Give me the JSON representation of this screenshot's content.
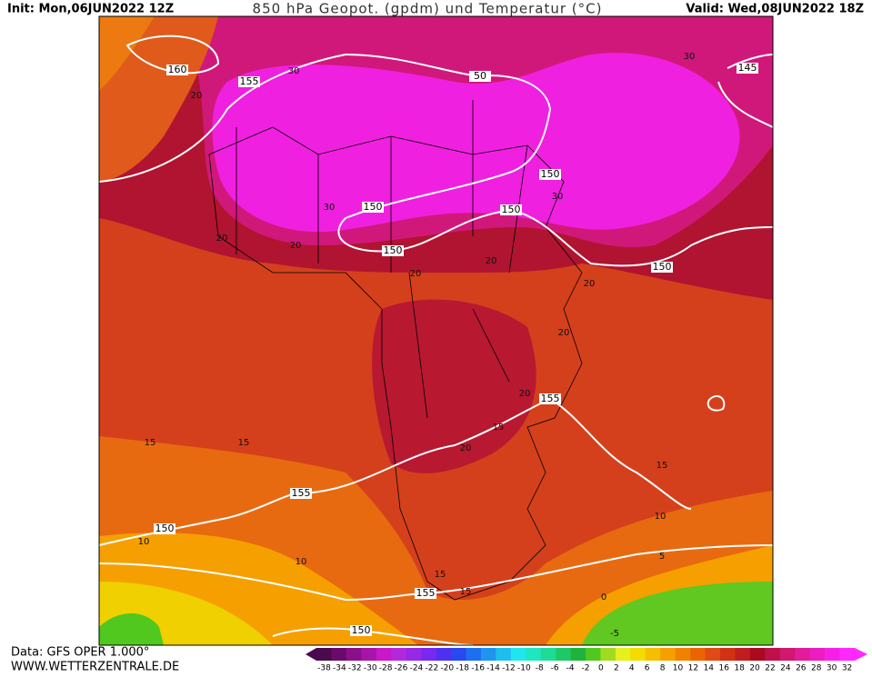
{
  "header": {
    "init": "Init: Mon,06JUN2022 12Z",
    "title": "850 hPa Geopot. (gpdm) und Temperatur (°C)",
    "valid": "Valid: Wed,08JUN2022 18Z"
  },
  "footer": {
    "data": "Data: GFS OPER 1.000°",
    "site": "WWW.WETTERZENTRALE.DE"
  },
  "colorbar": {
    "labels": [
      -38,
      -34,
      -32,
      -30,
      -28,
      -26,
      -24,
      -22,
      -20,
      -18,
      -16,
      -14,
      -12,
      -10,
      -8,
      -6,
      -4,
      -2,
      0,
      2,
      4,
      6,
      8,
      10,
      12,
      14,
      16,
      18,
      20,
      22,
      24,
      26,
      28,
      30,
      32
    ],
    "colors": [
      "#4b0a4b",
      "#6a0a6a",
      "#8a108a",
      "#a814a8",
      "#c818c8",
      "#b428dc",
      "#9628e6",
      "#7828f0",
      "#5030f0",
      "#2848f0",
      "#1e6ef0",
      "#1e96f0",
      "#1ebef0",
      "#1ee6f0",
      "#1ee6be",
      "#1edc96",
      "#1ec864",
      "#1eb43c",
      "#50c81e",
      "#a0dc1e",
      "#e6f01e",
      "#f5dc00",
      "#f5be00",
      "#f5a000",
      "#f08200",
      "#eb6400",
      "#e04a14",
      "#d23214",
      "#c01e1e",
      "#aa0a1e",
      "#c0104a",
      "#d01870",
      "#e01c9a",
      "#ec1cc0",
      "#f81ee6",
      "#ff28ff"
    ]
  },
  "geopotential_labels": [
    160,
    155,
    50,
    145,
    150,
    150,
    150,
    150,
    150,
    155,
    155,
    150,
    155,
    150
  ],
  "temperature_labels": [
    30,
    20,
    30,
    30,
    30,
    20,
    20,
    20,
    20,
    20,
    20,
    20,
    15,
    20,
    15,
    15,
    15,
    10,
    5,
    10,
    10,
    15,
    15,
    0,
    -5
  ]
}
